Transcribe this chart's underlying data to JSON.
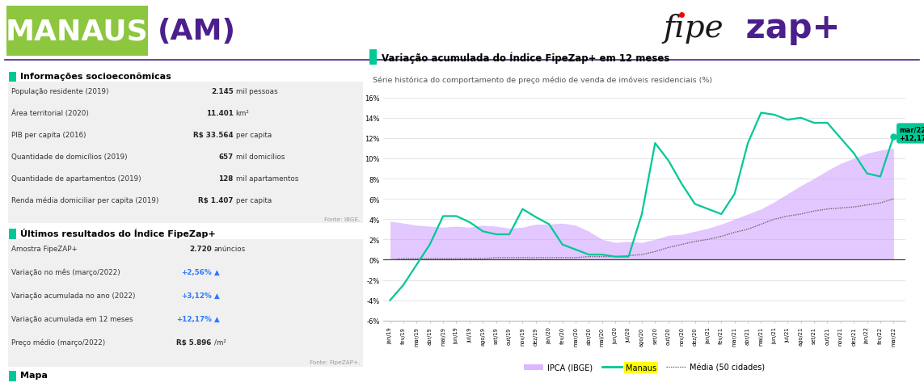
{
  "title_main": "Variação acumulada do Índice FipeZap+ em 12 meses",
  "subtitle": "Série histórica do comportamento de preço médio de venda de imóveis residenciais (%)",
  "header_city": "MANAUS",
  "header_state": "(AM)",
  "section1_title": "Informações socioeconômicas",
  "section2_title": "Últimos resultados do Índice FipeZap+",
  "section3_title": "Mapa",
  "info_rows": [
    [
      "População residente (2019)",
      "2.145",
      "mil pessoas"
    ],
    [
      "Área territorial (2020)",
      "11.401",
      "km²"
    ],
    [
      "PIB per capita (2016)",
      "R$ 33.564",
      "per capita"
    ],
    [
      "Quantidade de domicílios (2019)",
      "657",
      "mil domicílios"
    ],
    [
      "Quantidade de apartamentos (2019)",
      "128",
      "mil apartamentos"
    ],
    [
      "Renda média domiciliar per capita (2019)",
      "R$ 1.407",
      "per capita"
    ]
  ],
  "fonte1": "Fonte: IBGE.",
  "results_rows": [
    [
      "Amostra FipeZAP+",
      "2.720",
      "anúncios",
      "black"
    ],
    [
      "Variação no mês (março/2022)",
      "+2,56%",
      "▲",
      "blue"
    ],
    [
      "Variação acumulada no ano (2022)",
      "+3,12%",
      "▲",
      "blue"
    ],
    [
      "Variação acumulada em 12 meses",
      "+12,17%",
      "▲",
      "blue"
    ],
    [
      "Preço médio (março/2022)",
      "R$ 5.896",
      "/m²",
      "black"
    ]
  ],
  "fonte2": "Fonte: FipeZAP+.",
  "x_labels": [
    "jan/19",
    "fev/19",
    "mar/19",
    "abr/19",
    "mai/19",
    "jun/19",
    "jul/19",
    "ago/19",
    "set/19",
    "out/19",
    "nov/19",
    "dez/19",
    "jan/20",
    "fev/20",
    "mar/20",
    "abr/20",
    "mai/20",
    "jun/20",
    "jul/20",
    "ago/20",
    "set/20",
    "out/20",
    "nov/20",
    "dez/20",
    "jan/21",
    "fev/21",
    "mar/21",
    "abr/21",
    "mai/21",
    "jun/21",
    "jul/21",
    "ago/21",
    "set/21",
    "out/21",
    "nov/21",
    "dez/21",
    "jan/22",
    "fev/22",
    "mar/22"
  ],
  "manaus_data": [
    -4.0,
    -2.5,
    -0.5,
    1.5,
    4.3,
    4.3,
    3.7,
    2.8,
    2.5,
    2.5,
    5.0,
    4.2,
    3.5,
    1.5,
    1.0,
    0.5,
    0.5,
    0.3,
    0.3,
    4.5,
    11.5,
    9.8,
    7.5,
    5.5,
    5.0,
    4.5,
    6.5,
    11.5,
    14.5,
    14.3,
    13.8,
    14.0,
    13.5,
    13.5,
    12.0,
    10.5,
    8.5,
    8.2,
    12.17
  ],
  "ipca_data": [
    3.8,
    3.6,
    3.4,
    3.3,
    3.2,
    3.3,
    3.2,
    3.4,
    3.3,
    3.1,
    3.2,
    3.5,
    3.5,
    3.6,
    3.4,
    2.8,
    2.0,
    1.7,
    1.8,
    1.7,
    2.0,
    2.4,
    2.5,
    2.8,
    3.1,
    3.5,
    4.0,
    4.5,
    5.0,
    5.7,
    6.5,
    7.3,
    8.0,
    8.8,
    9.5,
    10.0,
    10.5,
    10.8,
    11.0
  ],
  "media50_data": [
    0.0,
    0.1,
    0.1,
    0.1,
    0.1,
    0.1,
    0.1,
    0.1,
    0.2,
    0.2,
    0.2,
    0.2,
    0.2,
    0.2,
    0.2,
    0.3,
    0.3,
    0.3,
    0.4,
    0.5,
    0.8,
    1.2,
    1.5,
    1.8,
    2.0,
    2.3,
    2.7,
    3.0,
    3.5,
    4.0,
    4.3,
    4.5,
    4.8,
    5.0,
    5.1,
    5.2,
    5.4,
    5.6,
    6.0
  ],
  "color_manaus": "#00c896",
  "color_ipca_fill": "#cc99ff",
  "color_media": "#666666",
  "color_green_header": "#8dc63f",
  "color_purple": "#4b1f8c",
  "color_section_square": "#00c896",
  "color_annotation_bg": "#00c896",
  "ylim": [
    -6,
    17
  ],
  "yticks": [
    -6,
    -4,
    -2,
    0,
    2,
    4,
    6,
    8,
    10,
    12,
    14,
    16
  ],
  "legend_ipca": "IPCA (IBGE)",
  "legend_manaus": "Manaus",
  "legend_media": "Média (50 cidades)"
}
